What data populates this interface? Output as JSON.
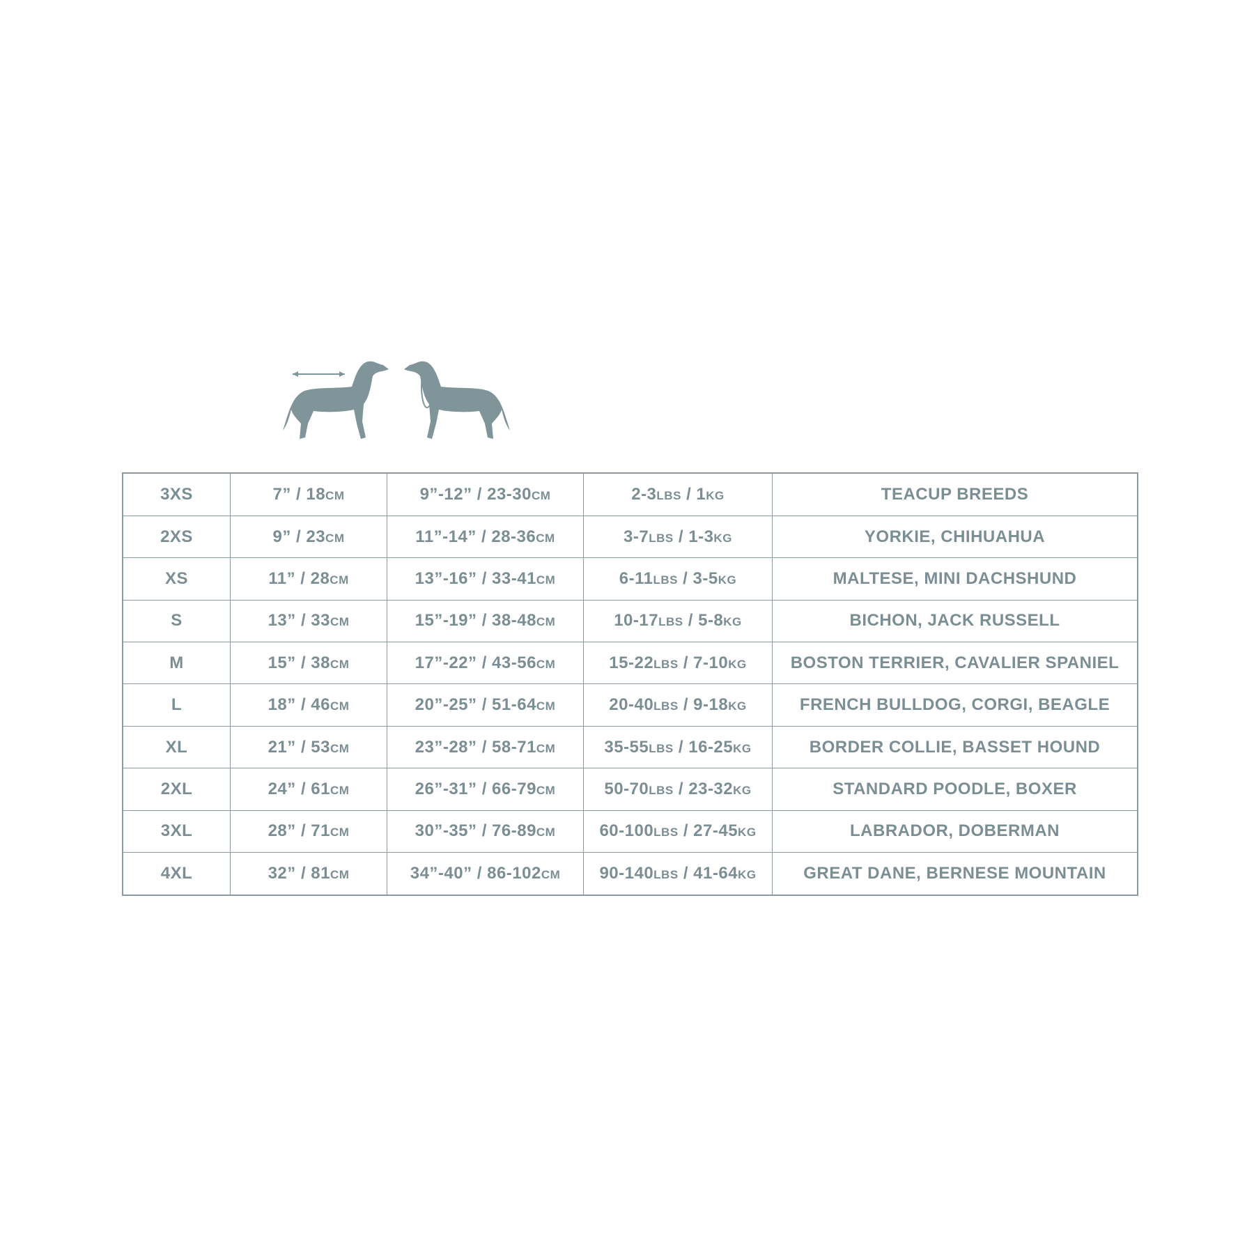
{
  "table": {
    "rows": [
      [
        "3XS",
        "7” / 18cm",
        "9”-12” / 23-30cm",
        "2-3lbs / 1kg",
        "TEACUP BREEDS"
      ],
      [
        "2XS",
        "9” / 23cm",
        "11”-14” / 28-36cm",
        "3-7lbs / 1-3kg",
        "YORKIE, CHIHUAHUA"
      ],
      [
        "XS",
        "11” / 28cm",
        "13”-16” / 33-41cm",
        "6-11lbs / 3-5kg",
        "MALTESE, MINI DACHSHUND"
      ],
      [
        "S",
        "13” / 33cm",
        "15”-19” / 38-48cm",
        "10-17lbs / 5-8kg",
        "BICHON, JACK RUSSELL"
      ],
      [
        "M",
        "15” / 38cm",
        "17”-22” / 43-56cm",
        "15-22lbs / 7-10kg",
        "BOSTON TERRIER, CAVALIER SPANIEL"
      ],
      [
        "L",
        "18” / 46cm",
        "20”-25” / 51-64cm",
        "20-40lbs / 9-18kg",
        "FRENCH BULLDOG, CORGI, BEAGLE"
      ],
      [
        "XL",
        "21” / 53cm",
        "23”-28” / 58-71cm",
        "35-55lbs / 16-25kg",
        "BORDER COLLIE, BASSET HOUND"
      ],
      [
        "2XL",
        "24” / 61cm",
        "26”-31” / 66-79cm",
        "50-70lbs / 23-32kg",
        "STANDARD POODLE, BOXER"
      ],
      [
        "3XL",
        "28” / 71cm",
        "30”-35” / 76-89cm",
        "60-100lbs / 27-45kg",
        "LABRADOR, DOBERMAN"
      ],
      [
        "4XL",
        "32” / 81cm",
        "34”-40” / 86-102cm",
        "90-140lbs / 41-64kg",
        "GREAT DANE, BERNESE MOUNTAIN"
      ]
    ]
  }
}
